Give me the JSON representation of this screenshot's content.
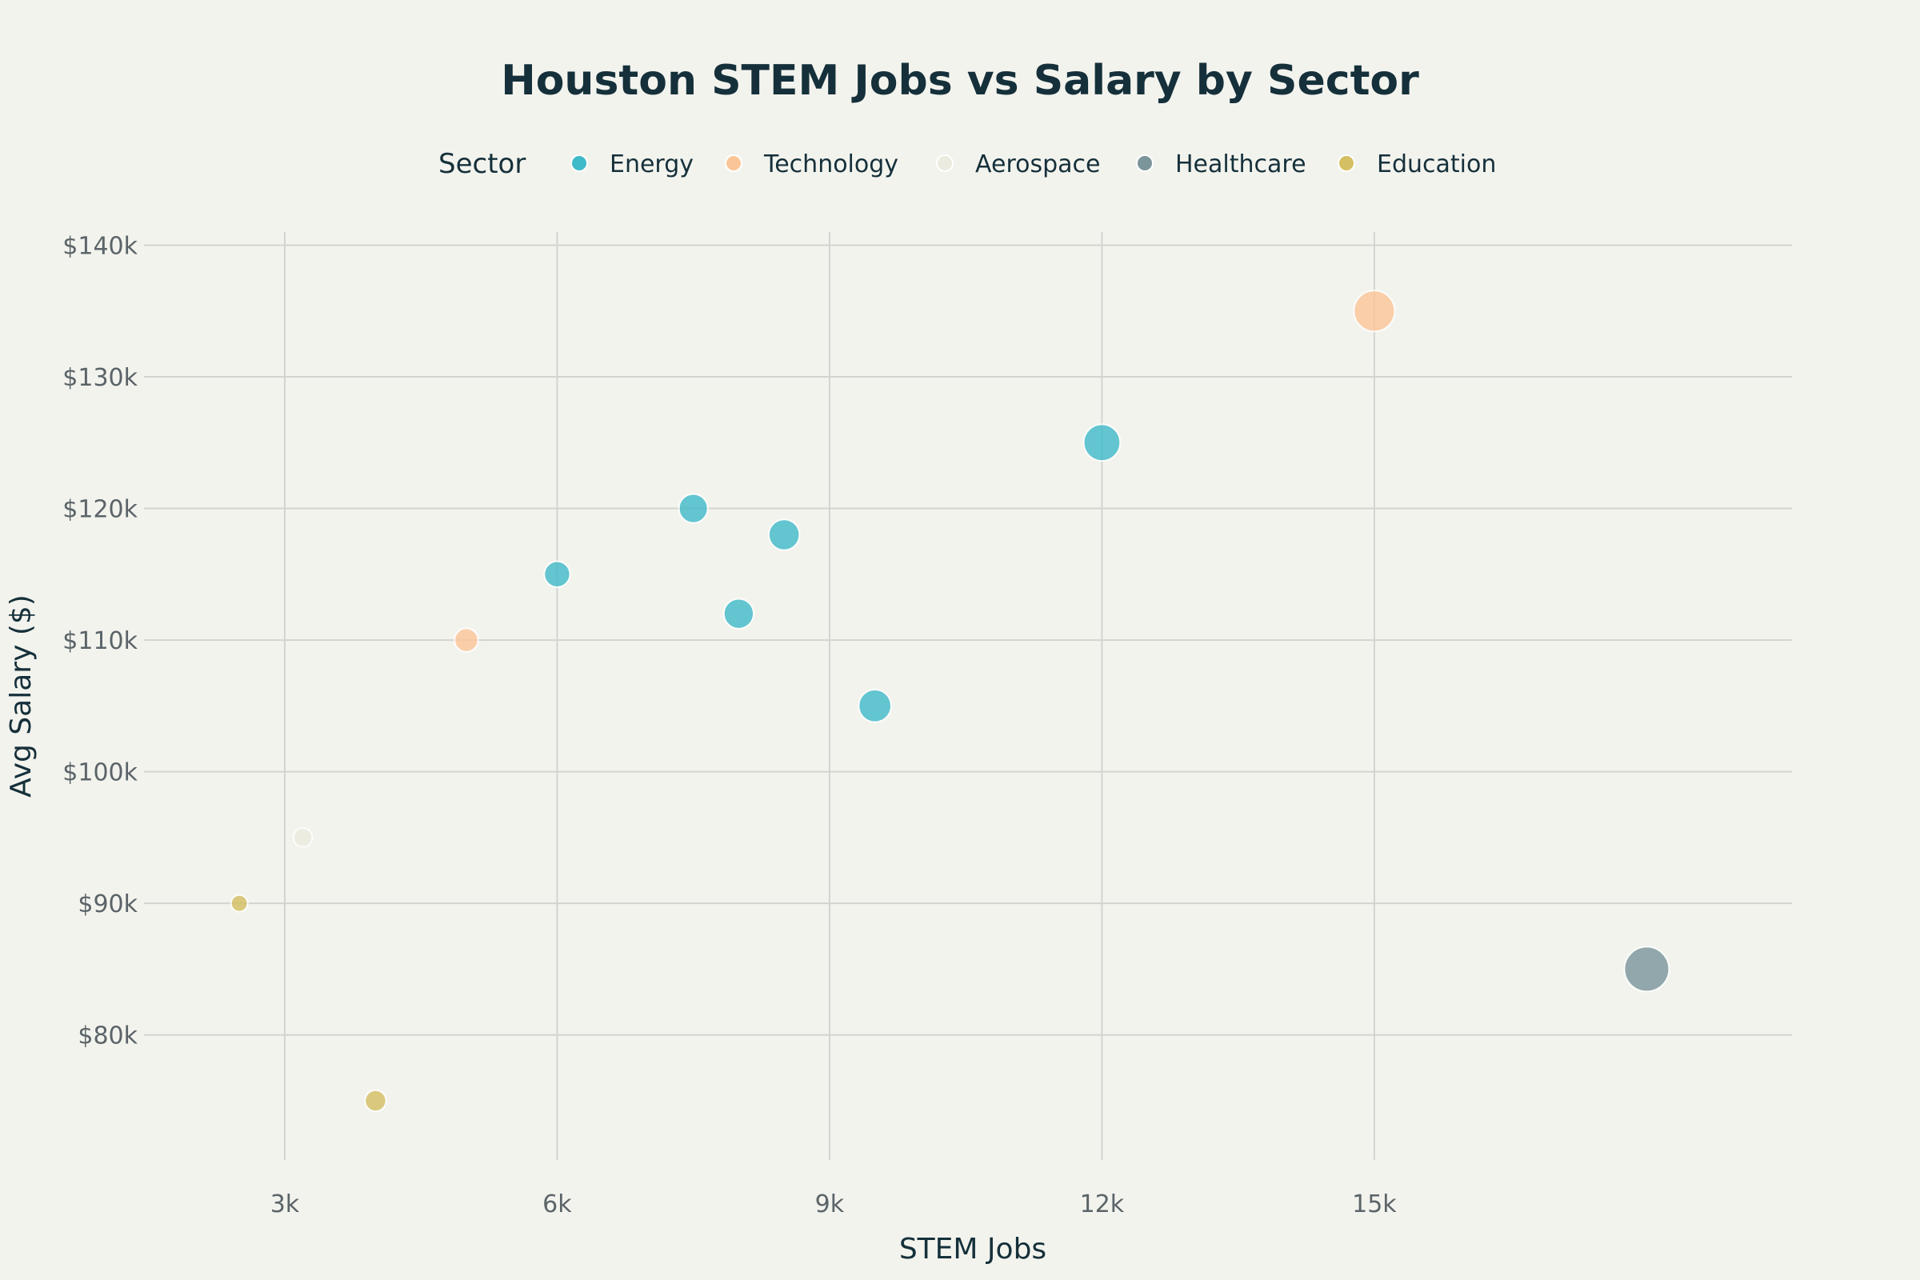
{
  "chart_data": {
    "type": "scatter",
    "title": "Houston STEM Jobs vs Salary by Sector",
    "xlabel": "STEM Jobs",
    "ylabel": "Avg Salary ($)",
    "xlim": [
      1450,
      19600
    ],
    "ylim": [
      70500,
      141000
    ],
    "x_ticks": [
      3000,
      6000,
      9000,
      12000,
      15000
    ],
    "x_tick_labels": [
      "3k",
      "6k",
      "9k",
      "12k",
      "15k"
    ],
    "y_ticks": [
      80000,
      90000,
      100000,
      110000,
      120000,
      130000,
      140000
    ],
    "y_tick_labels": [
      "$80k",
      "$90k",
      "$100k",
      "$110k",
      "$120k",
      "$130k",
      "$140k"
    ],
    "grid": true,
    "legend": {
      "title": "Sector",
      "placement": "top-center",
      "orientation": "horizontal"
    },
    "size_by": "STEM Jobs",
    "series": [
      {
        "name": "Energy",
        "color": "#3fbac9",
        "points": [
          {
            "x": 6000,
            "y": 115000
          },
          {
            "x": 7500,
            "y": 120000
          },
          {
            "x": 8000,
            "y": 112000
          },
          {
            "x": 8500,
            "y": 118000
          },
          {
            "x": 9500,
            "y": 105000
          },
          {
            "x": 12000,
            "y": 125000
          }
        ]
      },
      {
        "name": "Technology",
        "color": "#fbc697",
        "points": [
          {
            "x": 5000,
            "y": 110000
          },
          {
            "x": 15000,
            "y": 135000
          }
        ]
      },
      {
        "name": "Aerospace",
        "color": "#ecebdf",
        "points": [
          {
            "x": 3200,
            "y": 95000
          }
        ]
      },
      {
        "name": "Healthcare",
        "color": "#7b959b",
        "points": [
          {
            "x": 18000,
            "y": 85000
          }
        ]
      },
      {
        "name": "Education",
        "color": "#d4bf62",
        "points": [
          {
            "x": 2500,
            "y": 90000
          },
          {
            "x": 4000,
            "y": 75000
          }
        ]
      }
    ]
  }
}
